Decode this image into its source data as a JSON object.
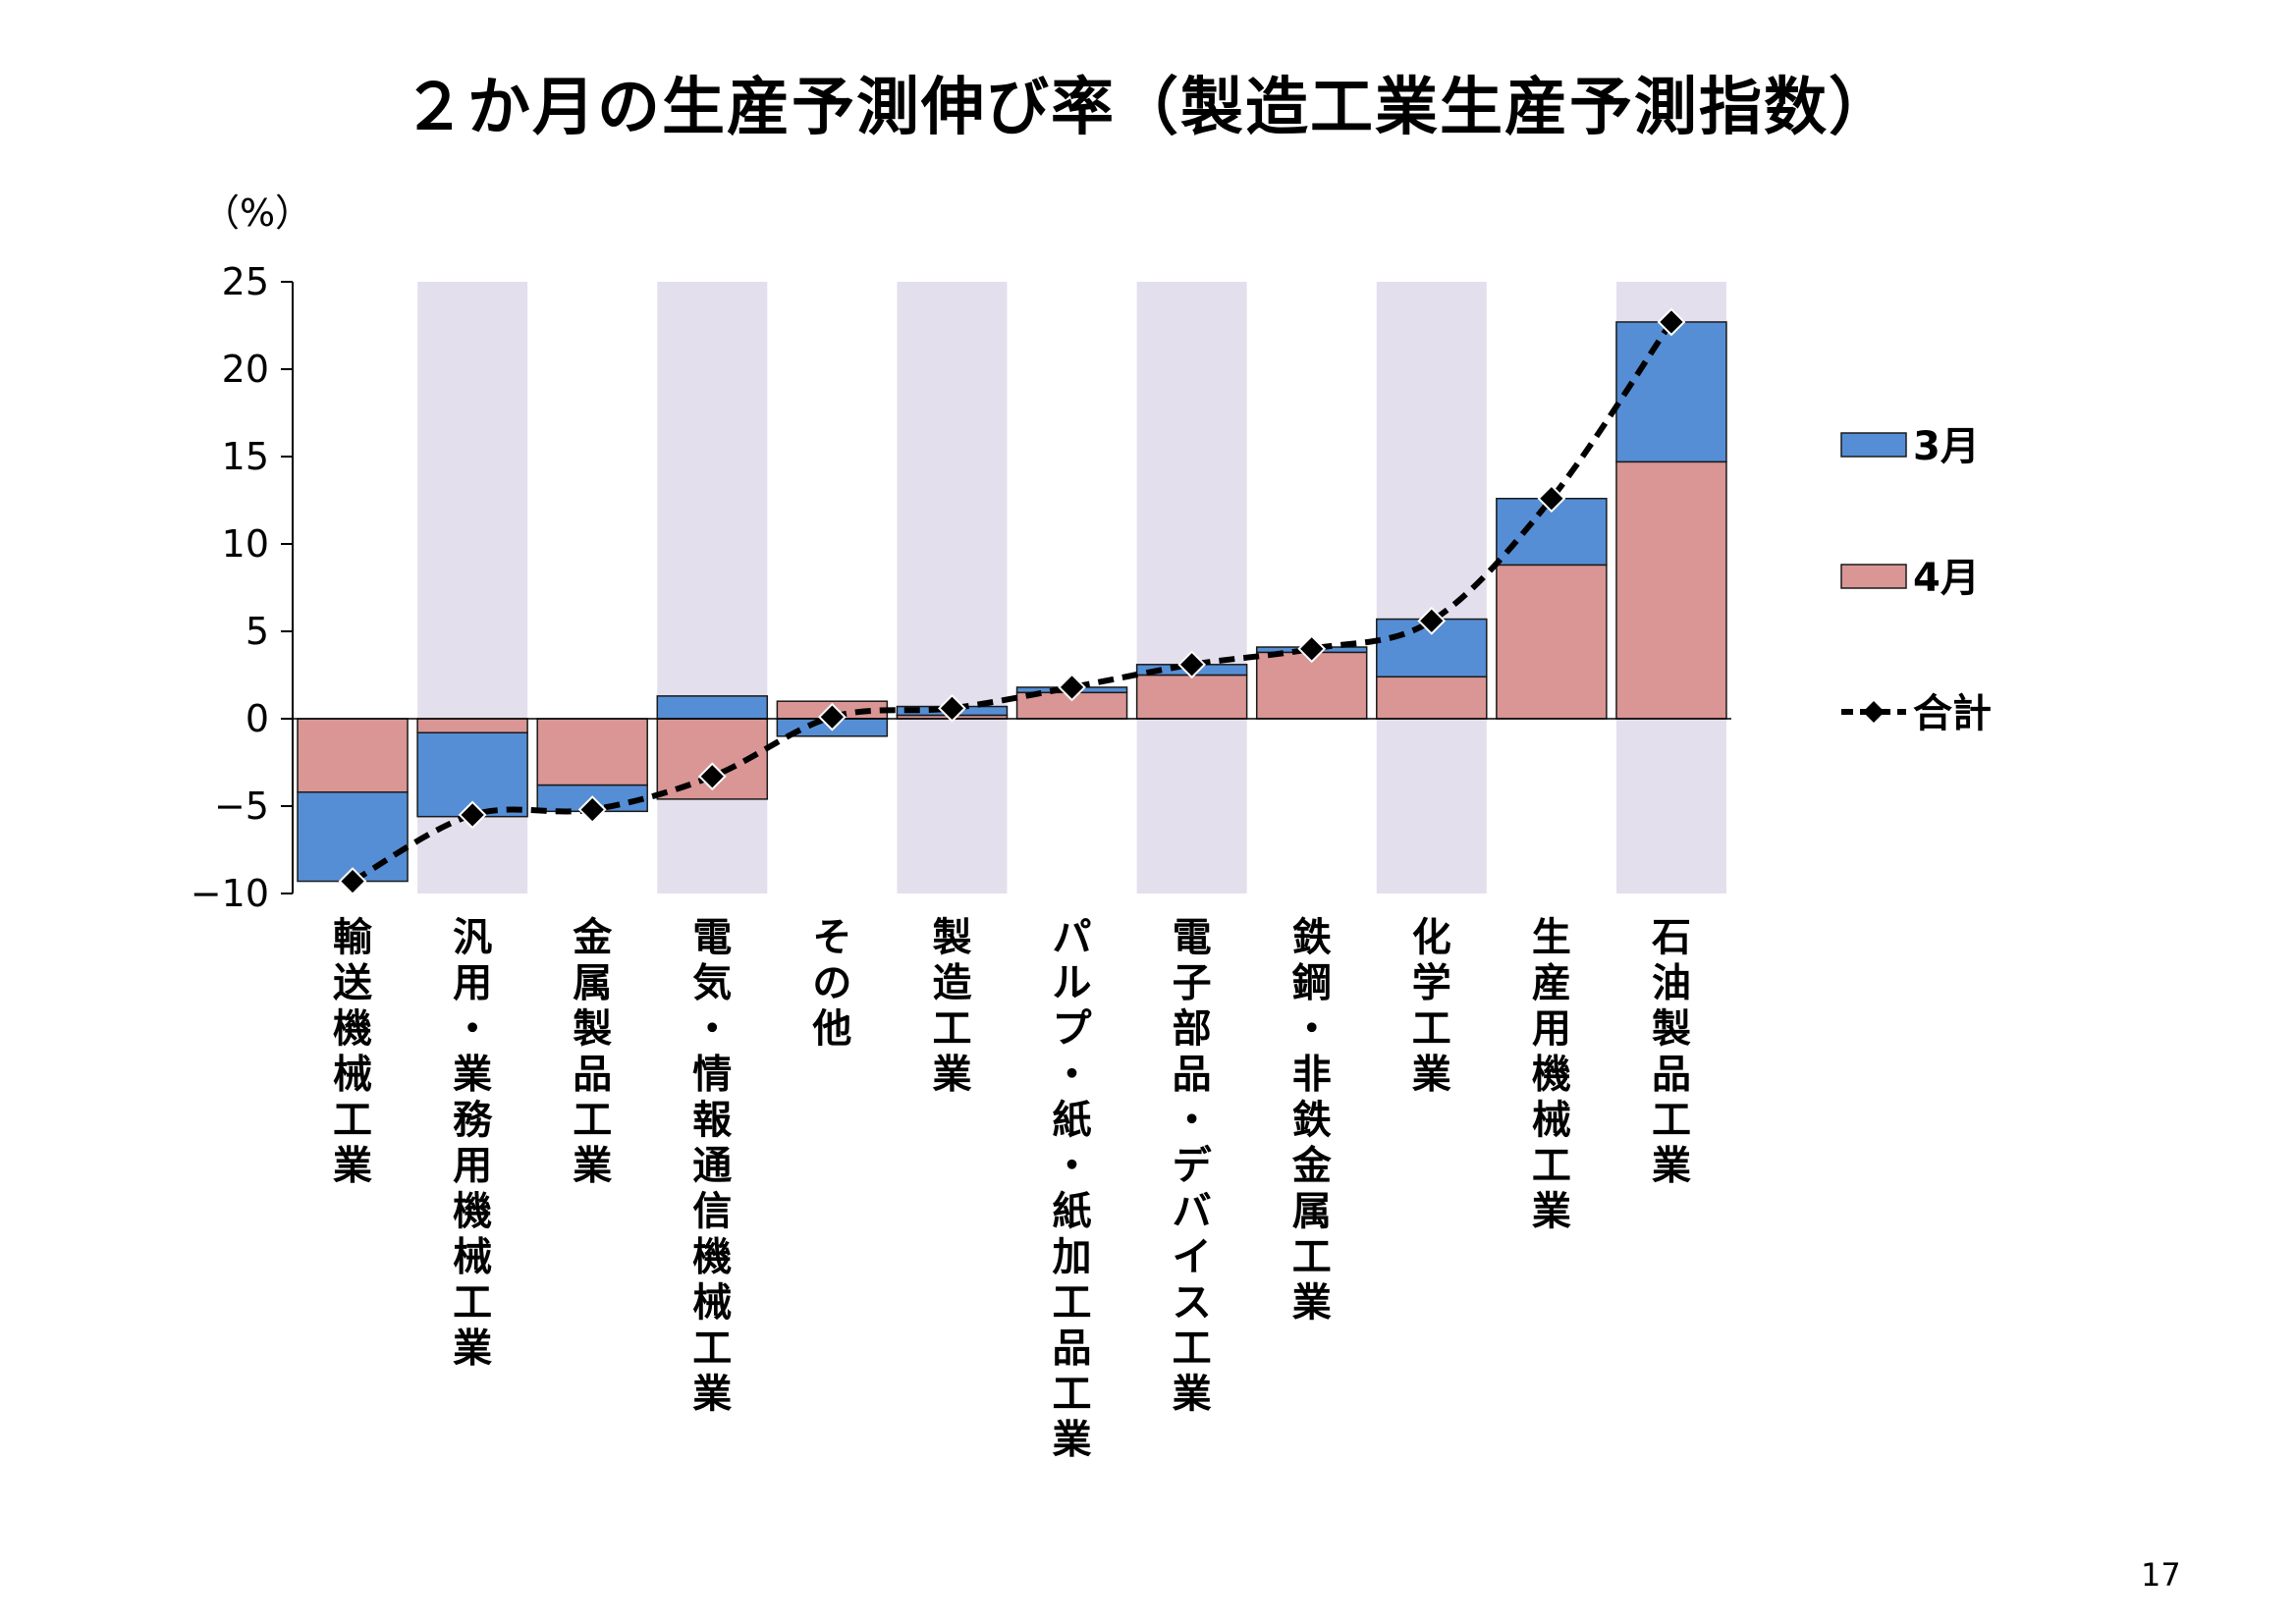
{
  "title": "２か月の生産予測伸び率（製造工業生産予測指数）",
  "page_number": "17",
  "colors": {
    "march": "#558ed5",
    "april": "#d99694",
    "band": "#e4dfec",
    "line": "#000000"
  },
  "chart_data": {
    "type": "bar",
    "title": "２か月の生産予測伸び率（製造工業生産予測指数）",
    "ylabel": "（%）",
    "xlabel": "",
    "ylim": [
      -10,
      25
    ],
    "yticks": [
      25,
      20,
      15,
      10,
      5,
      0,
      -5,
      -10
    ],
    "ytick_labels": [
      "25",
      "20",
      "15",
      "10",
      "5",
      "0",
      "−5",
      "−10"
    ],
    "grid": false,
    "stacked": true,
    "legend_position": "right",
    "alternating_bands": [
      1,
      3,
      5,
      7,
      9,
      11
    ],
    "categories": [
      "輸送機械工業",
      "汎用・業務用機械工業",
      "金属製品工業",
      "電気・情報通信機械工業",
      "その他",
      "製造工業",
      "パルプ・紙・紙加工品工業",
      "電子部品・デバイス工業",
      "鉄鋼・非鉄金属工業",
      "化学工業",
      "生産用機械工業",
      "石油製品工業"
    ],
    "series": [
      {
        "name": "4月",
        "type": "bar",
        "color": "#d99694",
        "values": [
          -4.2,
          -0.8,
          -3.8,
          -4.6,
          1.0,
          0.2,
          1.5,
          2.5,
          3.8,
          2.4,
          8.8,
          14.7
        ]
      },
      {
        "name": "3月",
        "type": "bar",
        "color": "#558ed5",
        "values": [
          -5.1,
          -4.8,
          -1.5,
          1.3,
          -1.0,
          0.5,
          0.3,
          0.6,
          0.3,
          3.3,
          3.8,
          8.0
        ]
      },
      {
        "name": "合計",
        "type": "line",
        "color": "#000000",
        "values": [
          -9.3,
          -5.5,
          -5.2,
          -3.3,
          0.1,
          0.6,
          1.8,
          3.1,
          4.0,
          5.6,
          12.6,
          22.7
        ]
      }
    ]
  }
}
